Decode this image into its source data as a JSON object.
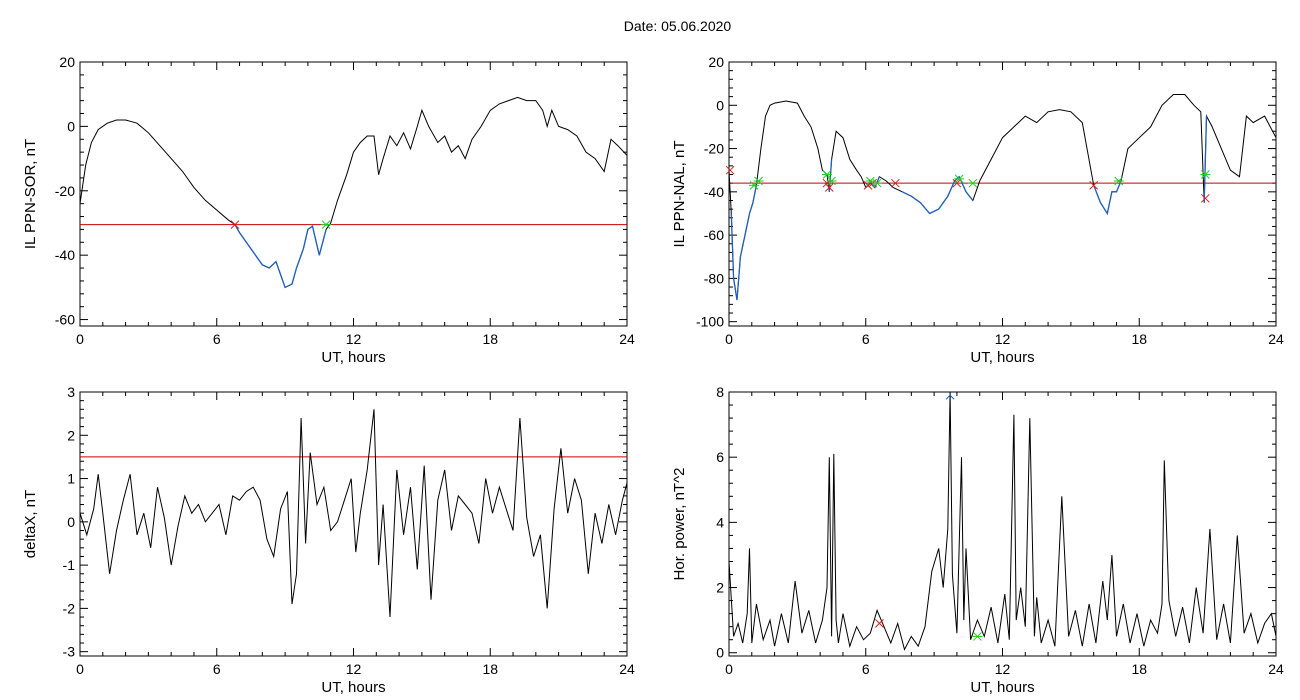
{
  "page": {
    "title": "Date:  05.06.2020"
  },
  "colors": {
    "trace": "#000000",
    "threshold": "#cc0000",
    "segment": "#1f5fbf",
    "marker_start": "#d61f1f",
    "marker_end": "#22cc22",
    "marker_max": "#1f5fbf"
  },
  "chart_data": [
    {
      "type": "line",
      "title": "",
      "xlabel": "UT, hours",
      "ylabel": "IL PPN-SOR, nT",
      "xlim": [
        0,
        24
      ],
      "ylim": [
        -62,
        20
      ],
      "xticks": [
        0,
        6,
        12,
        18,
        24
      ],
      "yticks": [
        -60,
        -40,
        -20,
        0,
        20
      ],
      "threshold": -30.5,
      "x": [
        0,
        0.25,
        0.5,
        0.8,
        1.2,
        1.6,
        2.0,
        2.5,
        3.0,
        3.5,
        4.0,
        4.5,
        5.0,
        5.5,
        6.0,
        6.5,
        6.8,
        7.0,
        7.5,
        8.0,
        8.3,
        8.6,
        9.0,
        9.3,
        9.5,
        9.8,
        10.0,
        10.2,
        10.5,
        10.8,
        11.0,
        11.3,
        11.7,
        12.0,
        12.3,
        12.6,
        12.9,
        13.1,
        13.3,
        13.6,
        13.9,
        14.2,
        14.5,
        14.8,
        15.0,
        15.3,
        15.7,
        16.0,
        16.3,
        16.6,
        16.9,
        17.2,
        17.6,
        18.0,
        18.4,
        18.8,
        19.2,
        19.6,
        20.0,
        20.3,
        20.5,
        20.7,
        21.0,
        21.4,
        21.8,
        22.2,
        22.6,
        23.0,
        23.3,
        23.6,
        24.0
      ],
      "y": [
        -24,
        -12,
        -5,
        -1,
        1,
        2,
        2,
        1,
        -2,
        -6,
        -10,
        -14,
        -19,
        -23,
        -26,
        -29,
        -30.5,
        -33,
        -38,
        -43,
        -44,
        -42,
        -50,
        -49,
        -44,
        -38,
        -32,
        -31,
        -40,
        -32,
        -30,
        -23,
        -15,
        -8,
        -5,
        -3,
        -3,
        -15,
        -10,
        -3,
        -6,
        -2,
        -7,
        0,
        5,
        0,
        -5,
        -3,
        -8,
        -6,
        -10,
        -4,
        0,
        5,
        7,
        8,
        9,
        8,
        8,
        5,
        0,
        5,
        0,
        -1,
        -3,
        -8,
        -10,
        -14,
        -4,
        -6,
        -9
      ],
      "segments": [
        [
          6.8,
          10.8
        ]
      ],
      "markers": [
        {
          "type": "start",
          "x": 6.8,
          "y": -30.5
        },
        {
          "type": "end",
          "x": 10.8,
          "y": -30.5
        }
      ]
    },
    {
      "type": "line",
      "title": "",
      "xlabel": "UT, hours",
      "ylabel": "IL PPN-NAL, nT",
      "xlim": [
        0,
        24
      ],
      "ylim": [
        -102,
        20
      ],
      "xticks": [
        0,
        6,
        12,
        18,
        24
      ],
      "yticks": [
        -100,
        -80,
        -60,
        -40,
        -20,
        0,
        20
      ],
      "threshold": -36,
      "x": [
        0,
        0.1,
        0.2,
        0.35,
        0.5,
        0.7,
        0.9,
        1.05,
        1.2,
        1.4,
        1.6,
        1.8,
        2.0,
        2.5,
        3.0,
        3.3,
        3.6,
        3.9,
        4.1,
        4.3,
        4.4,
        4.5,
        4.7,
        5.0,
        5.3,
        5.6,
        5.8,
        6.0,
        6.2,
        6.4,
        6.6,
        6.9,
        7.2,
        7.6,
        8.0,
        8.4,
        8.8,
        9.2,
        9.6,
        9.9,
        10.1,
        10.4,
        10.7,
        11.0,
        11.5,
        12.0,
        12.5,
        13.0,
        13.5,
        14.0,
        14.5,
        15.0,
        15.5,
        16.0,
        16.3,
        16.6,
        16.8,
        17.0,
        17.2,
        17.5,
        18.0,
        18.5,
        19.0,
        19.5,
        20.0,
        20.4,
        20.7,
        20.85,
        20.95,
        21.2,
        21.6,
        22.0,
        22.4,
        22.7,
        23.0,
        23.5,
        24.0
      ],
      "y": [
        -30,
        -50,
        -80,
        -90,
        -70,
        -60,
        -50,
        -45,
        -37,
        -20,
        -5,
        0,
        1,
        2,
        1,
        -5,
        -10,
        -20,
        -30,
        -32,
        -40,
        -25,
        -12,
        -15,
        -25,
        -30,
        -33,
        -38,
        -36,
        -38,
        -33,
        -35,
        -38,
        -40,
        -42,
        -45,
        -50,
        -48,
        -42,
        -35,
        -33,
        -40,
        -44,
        -35,
        -25,
        -15,
        -10,
        -5,
        -8,
        -3,
        -2,
        -3,
        -8,
        -37,
        -45,
        -50,
        -40,
        -40,
        -35,
        -20,
        -15,
        -10,
        0,
        5,
        5,
        0,
        -3,
        -45,
        -5,
        -10,
        -20,
        -30,
        -33,
        -5,
        -8,
        -5,
        -15
      ],
      "segments": [
        [
          0.1,
          1.2
        ],
        [
          4.35,
          4.55
        ],
        [
          6.0,
          6.6
        ],
        [
          7.6,
          10.7
        ],
        [
          16.0,
          17.2
        ],
        [
          20.85,
          20.95
        ]
      ],
      "markers": [
        {
          "type": "start",
          "x": 0.05,
          "y": -30
        },
        {
          "type": "end",
          "x": 1.1,
          "y": -37
        },
        {
          "type": "end",
          "x": 1.3,
          "y": -35
        },
        {
          "type": "start",
          "x": 4.3,
          "y": -36
        },
        {
          "type": "start",
          "x": 4.4,
          "y": -38
        },
        {
          "type": "end",
          "x": 4.3,
          "y": -32
        },
        {
          "type": "end",
          "x": 4.5,
          "y": -35
        },
        {
          "type": "start",
          "x": 6.1,
          "y": -37
        },
        {
          "type": "start",
          "x": 6.3,
          "y": -36
        },
        {
          "type": "end",
          "x": 6.2,
          "y": -35
        },
        {
          "type": "end",
          "x": 6.5,
          "y": -36
        },
        {
          "type": "start",
          "x": 7.3,
          "y": -36
        },
        {
          "type": "start",
          "x": 10.0,
          "y": -36
        },
        {
          "type": "end",
          "x": 10.1,
          "y": -34
        },
        {
          "type": "end",
          "x": 10.7,
          "y": -36
        },
        {
          "type": "start",
          "x": 16.0,
          "y": -37
        },
        {
          "type": "end",
          "x": 17.1,
          "y": -35
        },
        {
          "type": "start",
          "x": 20.9,
          "y": -43
        },
        {
          "type": "end",
          "x": 20.9,
          "y": -32
        }
      ]
    },
    {
      "type": "line",
      "title": "",
      "xlabel": "UT, hours",
      "ylabel": "deltaX, nT",
      "xlim": [
        0,
        24
      ],
      "ylim": [
        -3.1,
        3.0
      ],
      "xticks": [
        0,
        6,
        12,
        18,
        24
      ],
      "yticks": [
        -3,
        -2,
        -1,
        0,
        1,
        2,
        3
      ],
      "threshold": 1.5,
      "x": [
        0,
        0.3,
        0.6,
        0.8,
        1.0,
        1.3,
        1.6,
        1.9,
        2.2,
        2.5,
        2.8,
        3.1,
        3.4,
        3.7,
        4.0,
        4.3,
        4.6,
        4.9,
        5.2,
        5.5,
        5.8,
        6.1,
        6.4,
        6.7,
        7.0,
        7.3,
        7.6,
        7.9,
        8.2,
        8.5,
        8.8,
        9.1,
        9.3,
        9.5,
        9.7,
        9.9,
        10.1,
        10.4,
        10.7,
        11.0,
        11.3,
        11.6,
        11.9,
        12.1,
        12.3,
        12.6,
        12.9,
        13.1,
        13.3,
        13.6,
        13.9,
        14.2,
        14.5,
        14.8,
        15.1,
        15.4,
        15.7,
        16.0,
        16.3,
        16.6,
        16.9,
        17.2,
        17.5,
        17.8,
        18.1,
        18.4,
        18.7,
        19.0,
        19.3,
        19.6,
        19.9,
        20.2,
        20.5,
        20.8,
        21.1,
        21.4,
        21.7,
        22.0,
        22.3,
        22.6,
        22.9,
        23.2,
        23.5,
        23.8,
        24.0
      ],
      "y": [
        0.2,
        -0.3,
        0.3,
        1.1,
        0.2,
        -1.2,
        -0.2,
        0.5,
        1.1,
        -0.3,
        0.2,
        -0.6,
        0.8,
        0.1,
        -1.0,
        -0.1,
        0.6,
        0.2,
        0.4,
        0.0,
        0.2,
        0.4,
        -0.3,
        0.6,
        0.5,
        0.7,
        0.8,
        0.5,
        -0.4,
        -0.8,
        0.3,
        0.7,
        -1.9,
        -1.2,
        2.4,
        -0.5,
        1.6,
        0.4,
        0.8,
        -0.2,
        0.0,
        0.5,
        1.0,
        -0.7,
        0.2,
        1.2,
        2.6,
        -1.0,
        0.4,
        -2.2,
        1.2,
        -0.3,
        0.8,
        -1.1,
        1.3,
        -1.8,
        0.5,
        1.2,
        -0.2,
        0.6,
        0.4,
        0.2,
        -0.5,
        1.0,
        0.2,
        0.8,
        0.3,
        -0.2,
        2.4,
        0.1,
        -0.8,
        -0.3,
        -2.0,
        0.3,
        1.7,
        0.2,
        1.0,
        0.5,
        -1.2,
        0.2,
        -0.5,
        0.4,
        -0.3,
        0.5,
        0.9
      ],
      "segments": [],
      "markers": []
    },
    {
      "type": "line",
      "title": "",
      "xlabel": "UT, hours",
      "ylabel": "Hor. power, nT^2",
      "xlim": [
        0,
        24
      ],
      "ylim": [
        -0.1,
        8.0
      ],
      "xticks": [
        0,
        6,
        12,
        18,
        24
      ],
      "yticks": [
        0,
        2,
        4,
        6,
        8
      ],
      "threshold": null,
      "x": [
        0,
        0.2,
        0.4,
        0.6,
        0.8,
        0.9,
        1.0,
        1.2,
        1.5,
        1.8,
        2.0,
        2.3,
        2.6,
        2.9,
        3.2,
        3.5,
        3.8,
        4.1,
        4.3,
        4.4,
        4.5,
        4.6,
        4.7,
        4.8,
        5.0,
        5.3,
        5.6,
        5.9,
        6.2,
        6.5,
        6.8,
        7.1,
        7.4,
        7.7,
        8.0,
        8.3,
        8.6,
        8.9,
        9.2,
        9.4,
        9.6,
        9.7,
        9.8,
        10.0,
        10.2,
        10.3,
        10.4,
        10.6,
        10.9,
        11.2,
        11.5,
        11.8,
        12.1,
        12.3,
        12.5,
        12.6,
        12.8,
        13.0,
        13.2,
        13.4,
        13.5,
        13.7,
        14.0,
        14.3,
        14.6,
        14.9,
        15.2,
        15.5,
        15.8,
        16.1,
        16.4,
        16.6,
        16.8,
        17.0,
        17.3,
        17.6,
        17.9,
        18.2,
        18.5,
        18.8,
        19.0,
        19.1,
        19.3,
        19.6,
        19.9,
        20.2,
        20.5,
        20.8,
        21.1,
        21.4,
        21.7,
        22.0,
        22.3,
        22.6,
        22.9,
        23.2,
        23.5,
        23.8,
        24.0
      ],
      "y": [
        2.8,
        0.5,
        0.9,
        0.3,
        1.2,
        3.2,
        0.3,
        1.5,
        0.4,
        1.0,
        0.2,
        1.2,
        0.3,
        2.2,
        0.6,
        1.3,
        0.3,
        1.0,
        2.0,
        6.0,
        0.5,
        6.1,
        1.0,
        0.3,
        1.2,
        0.2,
        0.8,
        0.4,
        0.6,
        1.3,
        0.8,
        0.3,
        0.9,
        0.1,
        0.5,
        0.2,
        0.8,
        2.5,
        3.2,
        2.0,
        3.8,
        8.0,
        2.4,
        0.6,
        6.0,
        1.0,
        3.2,
        0.4,
        1.0,
        0.5,
        1.4,
        0.3,
        1.8,
        0.4,
        7.3,
        1.0,
        2.0,
        0.8,
        7.2,
        0.5,
        1.7,
        0.3,
        1.0,
        0.2,
        4.8,
        0.5,
        1.3,
        0.2,
        1.5,
        0.3,
        2.2,
        1.0,
        3.0,
        0.5,
        1.5,
        0.3,
        1.2,
        0.2,
        1.0,
        0.6,
        1.5,
        5.9,
        1.6,
        0.5,
        1.4,
        0.3,
        2.0,
        0.6,
        3.8,
        0.4,
        1.5,
        0.3,
        3.6,
        0.6,
        1.2,
        0.3,
        0.9,
        1.2,
        0.5
      ],
      "segments": [],
      "markers": [
        {
          "type": "start",
          "x": 6.6,
          "y": 0.9
        },
        {
          "type": "max",
          "x": 9.7,
          "y": 7.9
        },
        {
          "type": "end",
          "x": 10.9,
          "y": 0.5
        }
      ]
    }
  ]
}
